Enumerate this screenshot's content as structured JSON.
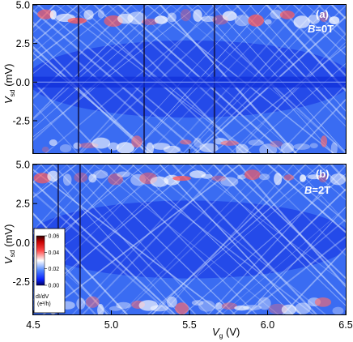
{
  "chart_data": [
    {
      "type": "heatmap",
      "panel_label": "(a)",
      "field_label": {
        "var": "B",
        "value": "=0T"
      },
      "xlim": [
        4.5,
        6.5
      ],
      "ylim": [
        -4.6,
        5.0
      ],
      "y_ticks": [
        "5.0",
        "2.5",
        "0.0",
        "-2.5"
      ],
      "y_tick_values": [
        5.0,
        2.5,
        0.0,
        -2.5
      ],
      "ylabel": {
        "main": "V",
        "sub": "sd",
        "unit": " (mV)"
      },
      "zero_bias_feature": true,
      "grid": false
    },
    {
      "type": "heatmap",
      "panel_label": "(b)",
      "field_label": {
        "var": "B",
        "value": "=2T"
      },
      "xlim": [
        4.5,
        6.5
      ],
      "ylim": [
        -4.6,
        5.0
      ],
      "y_ticks": [
        "5.0",
        "2.5",
        "0.0",
        "-2.5"
      ],
      "y_tick_values": [
        5.0,
        2.5,
        0.0,
        -2.5
      ],
      "ylabel": {
        "main": "V",
        "sub": "sd",
        "unit": " (mV)"
      },
      "x_ticks": [
        "4.5",
        "5.0",
        "5.5",
        "6.0",
        "6.5"
      ],
      "x_tick_values": [
        4.5,
        5.0,
        5.5,
        6.0,
        6.5
      ],
      "xlabel": {
        "main": "V",
        "sub": "g",
        "unit": " (V)"
      },
      "zero_bias_feature": false,
      "grid": false
    }
  ],
  "colorbar": {
    "ticks": [
      "0.06",
      "0.04",
      "0.02",
      "0.00"
    ],
    "tick_values": [
      0.06,
      0.04,
      0.02,
      0.0
    ],
    "range": [
      0.0,
      0.06
    ],
    "label_line1": "dI/dV",
    "label_line2": "(e²/h)",
    "colors": [
      "#000080",
      "#1133ff",
      "#4f86ff",
      "#ffffff",
      "#ff4444",
      "#cc0000",
      "#400000"
    ]
  }
}
